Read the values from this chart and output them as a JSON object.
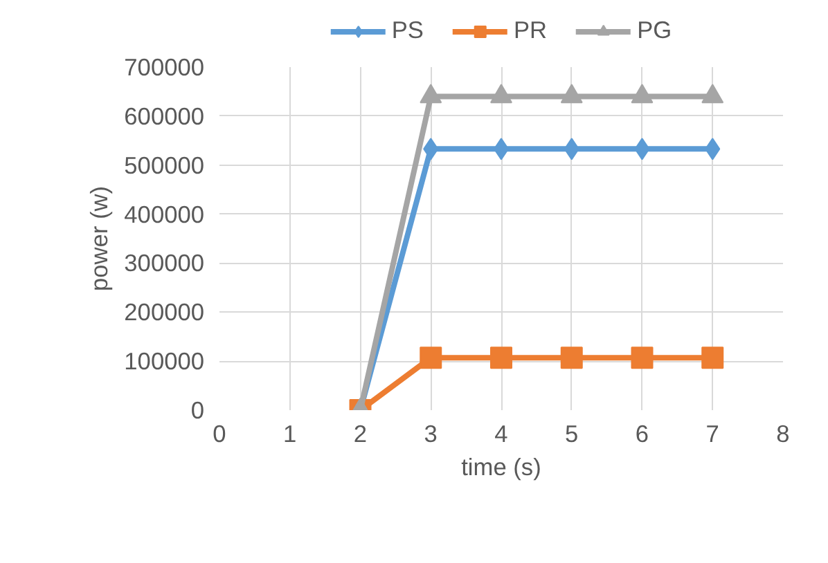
{
  "chart_data": {
    "type": "line",
    "xlabel": "time (s)",
    "ylabel": "power (w)",
    "x": [
      2,
      3,
      4,
      5,
      6,
      7
    ],
    "series": [
      {
        "name": "PS",
        "color": "#5b9bd5",
        "marker": "diamond",
        "values": [
          0,
          533000,
          533000,
          533000,
          533000,
          533000
        ]
      },
      {
        "name": "PR",
        "color": "#ed7d31",
        "marker": "square",
        "values": [
          0,
          107000,
          107000,
          107000,
          107000,
          107000
        ]
      },
      {
        "name": "PG",
        "color": "#a5a5a5",
        "marker": "triangle",
        "values": [
          0,
          640000,
          640000,
          640000,
          640000,
          640000
        ]
      }
    ],
    "xlim": [
      0,
      8
    ],
    "xticks": [
      0,
      1,
      2,
      3,
      4,
      5,
      6,
      7,
      8
    ],
    "ylim": [
      0,
      700000
    ],
    "yticks": [
      0,
      100000,
      200000,
      300000,
      400000,
      500000,
      600000,
      700000
    ],
    "grid": true,
    "legend": "top",
    "line_style": "solid"
  }
}
